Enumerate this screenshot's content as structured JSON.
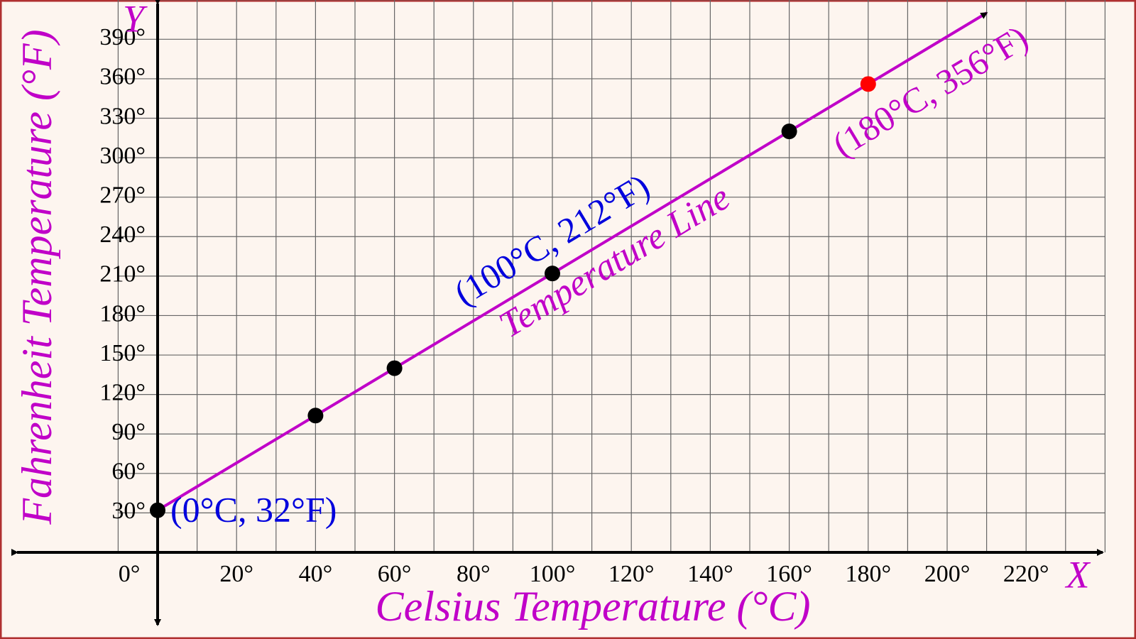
{
  "chart_data": {
    "type": "line",
    "x_label": "Celsius Temperature (°C)",
    "y_label": "Fahrenheit Temperature (°F)",
    "x_axis_name": "X",
    "y_axis_name": "Y",
    "xlim": [
      -10,
      240
    ],
    "ylim": [
      0,
      420
    ],
    "xticks": [
      {
        "value": 0,
        "label": "0°"
      },
      {
        "value": 20,
        "label": "20°"
      },
      {
        "value": 40,
        "label": "40°"
      },
      {
        "value": 60,
        "label": "60°"
      },
      {
        "value": 80,
        "label": "80°"
      },
      {
        "value": 100,
        "label": "100°"
      },
      {
        "value": 120,
        "label": "120°"
      },
      {
        "value": 140,
        "label": "140°"
      },
      {
        "value": 160,
        "label": "160°"
      },
      {
        "value": 180,
        "label": "180°"
      },
      {
        "value": 200,
        "label": "200°"
      },
      {
        "value": 220,
        "label": "220°"
      }
    ],
    "x_minor_ticks": [
      -10,
      10,
      30,
      50,
      70,
      90,
      110,
      130,
      150,
      170,
      190,
      210,
      230,
      240
    ],
    "yticks": [
      {
        "value": 30,
        "label": "30°"
      },
      {
        "value": 60,
        "label": "60°"
      },
      {
        "value": 90,
        "label": "90°"
      },
      {
        "value": 120,
        "label": "120°"
      },
      {
        "value": 150,
        "label": "150°"
      },
      {
        "value": 180,
        "label": "180°"
      },
      {
        "value": 210,
        "label": "210°"
      },
      {
        "value": 240,
        "label": "240°"
      },
      {
        "value": 270,
        "label": "270°"
      },
      {
        "value": 300,
        "label": "300°"
      },
      {
        "value": 330,
        "label": "330°"
      },
      {
        "value": 360,
        "label": "360°"
      },
      {
        "value": 390,
        "label": "390°"
      }
    ],
    "grid": true,
    "series": [
      {
        "name": "Temperature Line",
        "color": "#c000c8",
        "x": [
          0,
          210
        ],
        "values": [
          32,
          410
        ]
      },
      {
        "type": "scatter",
        "colors": [
          "#000000",
          "#000000",
          "#000000",
          "#000000",
          "#000000",
          "#ff0000"
        ],
        "x": [
          0,
          40,
          60,
          100,
          160,
          180
        ],
        "values": [
          32,
          104,
          140,
          212,
          320,
          356
        ]
      }
    ],
    "annotations": [
      {
        "text": "(0°C, 32°F)",
        "color": "#0000dd"
      },
      {
        "text": "(100°C, 212°F)",
        "color": "#0000dd"
      },
      {
        "text": "(180°C, 356°F)",
        "color": "#c000c8"
      }
    ]
  }
}
